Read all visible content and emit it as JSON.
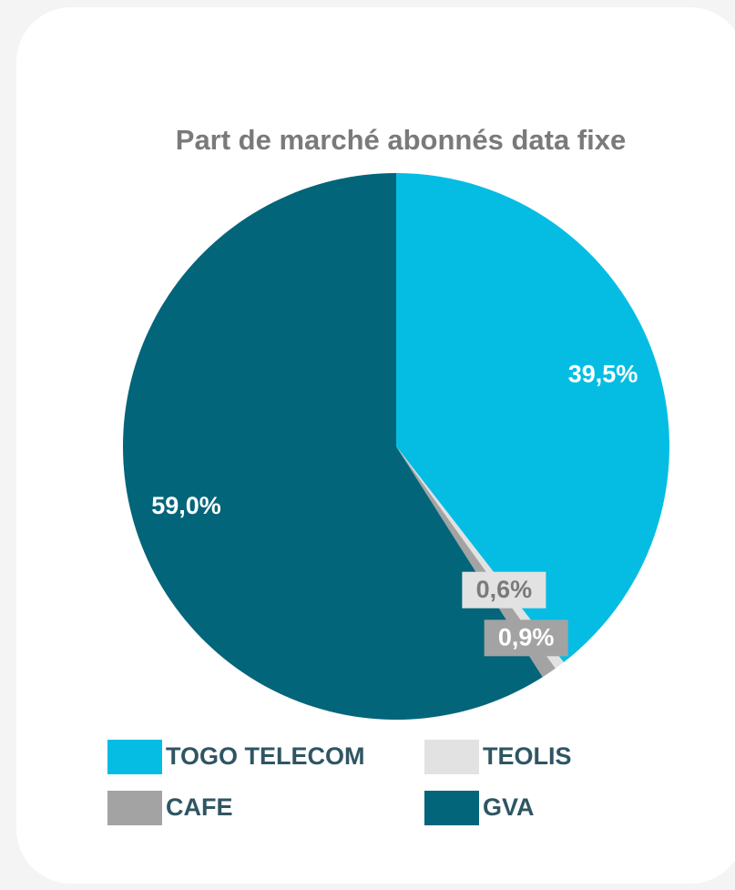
{
  "chart_data": {
    "type": "pie",
    "title": "Part de marché abonnés data fixe",
    "categories": [
      "TOGO TELECOM",
      "TEOLIS",
      "CAFE",
      "GVA"
    ],
    "values": [
      39.5,
      0.6,
      0.9,
      59.0
    ],
    "value_labels": [
      "39,5%",
      "0,6%",
      "0,9%",
      "59,0%"
    ],
    "colors": [
      "#05bde3",
      "#e2e2e2",
      "#a3a3a3",
      "#03657a"
    ],
    "legend": "bottom"
  }
}
